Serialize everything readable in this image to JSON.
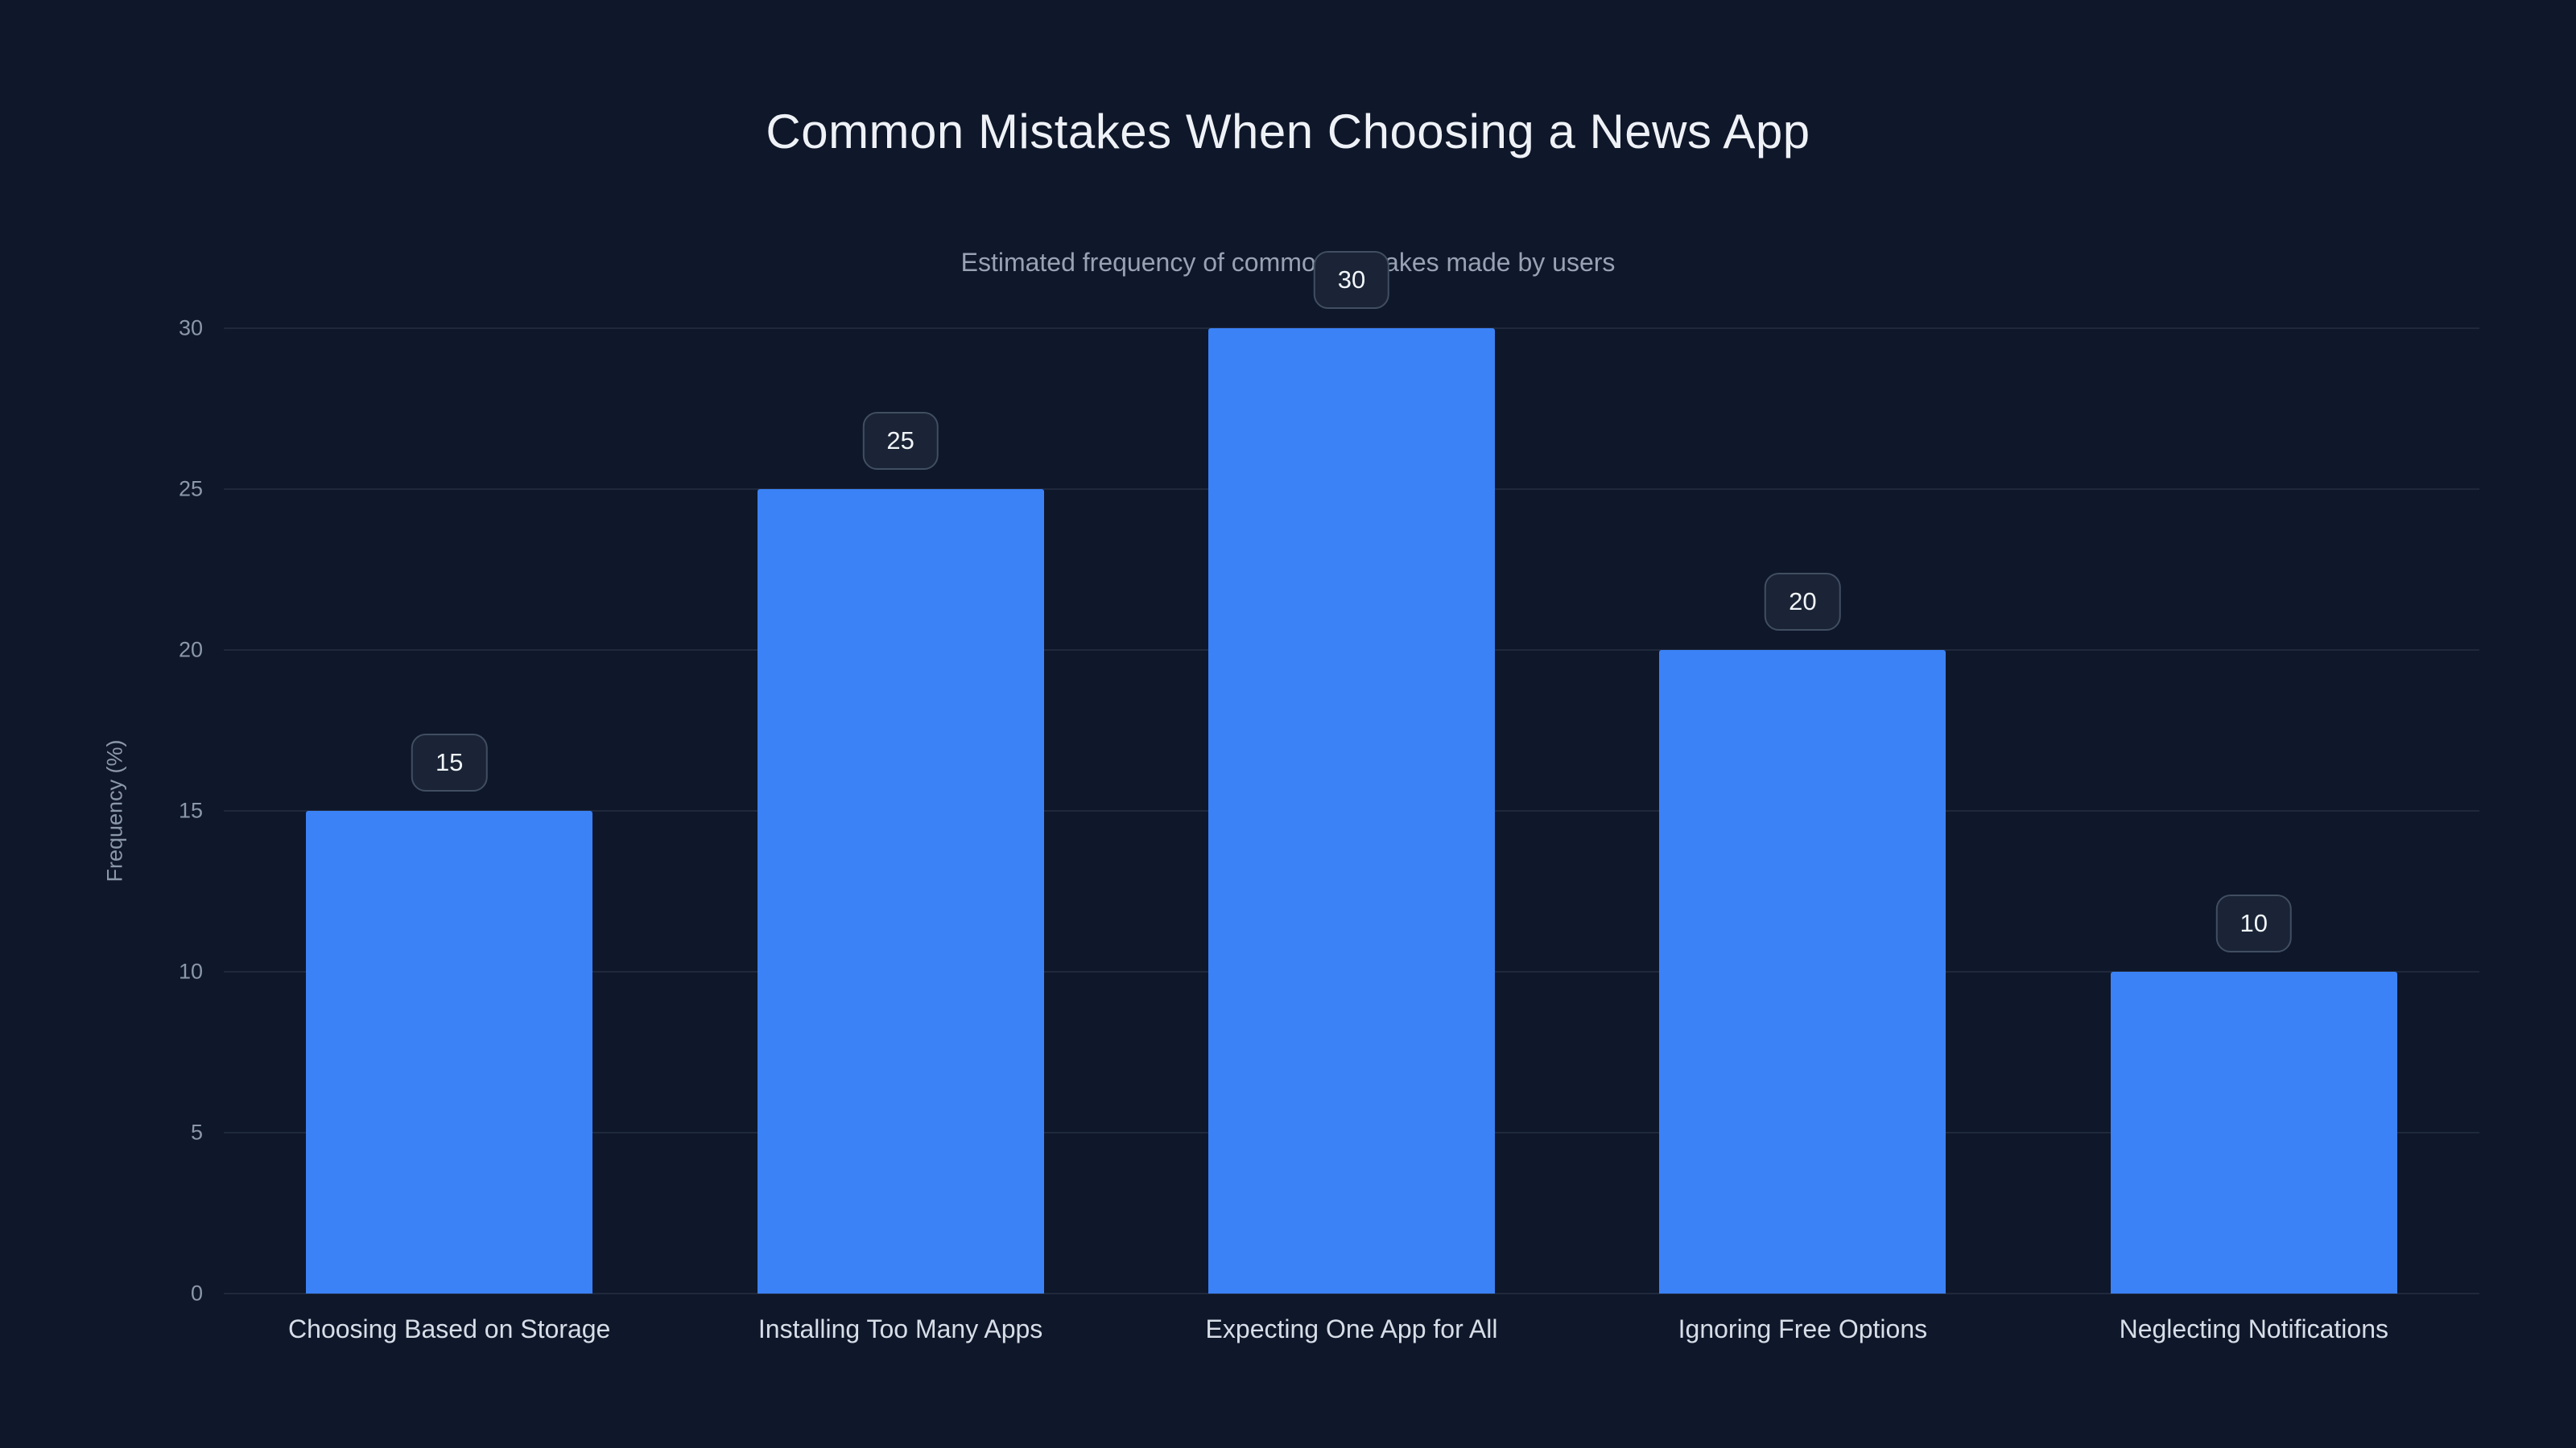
{
  "chart_data": {
    "type": "bar",
    "title": "Common Mistakes When Choosing a News App",
    "subtitle": "Estimated frequency of common mistakes made by users",
    "categories": [
      "Choosing Based on Storage",
      "Installing Too Many Apps",
      "Expecting One App for All",
      "Ignoring Free Options",
      "Neglecting Notifications"
    ],
    "values": [
      15,
      25,
      30,
      20,
      10
    ],
    "value_labels": [
      "15",
      "25",
      "30",
      "20",
      "10"
    ],
    "xlabel": "",
    "ylabel": "Frequency (%)",
    "ylim": [
      0,
      30
    ],
    "yticks": [
      0,
      5,
      10,
      15,
      20,
      25,
      30
    ],
    "grid": true,
    "legend": "none",
    "colors": {
      "background": "#0f172a",
      "bar": "#3b82f6",
      "gridline": "rgba(148,163,184,0.13)",
      "title_text": "#eef2f7",
      "subtitle_text": "#98a2b3",
      "tick_text": "#8b98a9",
      "category_text": "#d7dee8",
      "badge_background": "#1a2436",
      "badge_border": "#414e62",
      "badge_text": "#f1f5f9"
    }
  }
}
